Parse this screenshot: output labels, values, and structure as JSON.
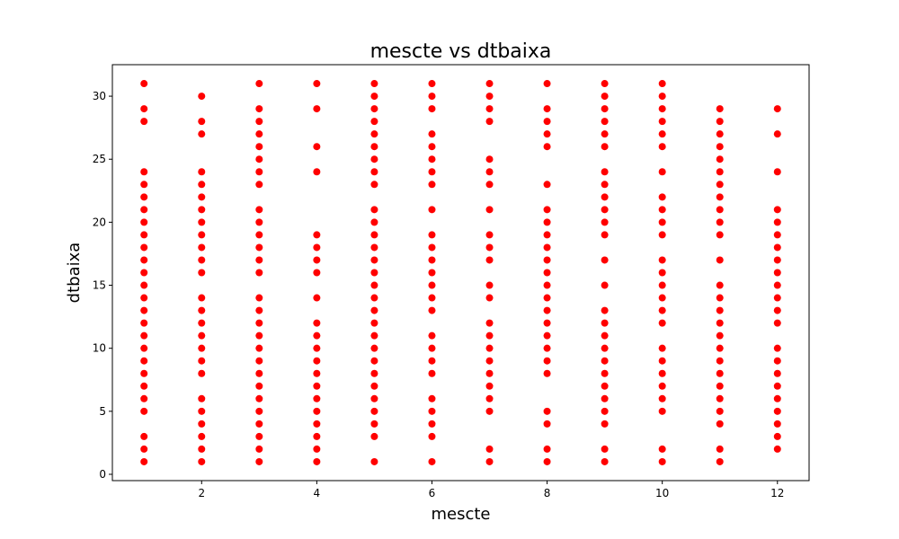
{
  "chart_data": {
    "type": "scatter",
    "title": "mescte vs dtbaixa",
    "xlabel": "mescte",
    "ylabel": "dtbaixa",
    "xlim": [
      0.45,
      12.55
    ],
    "ylim": [
      -0.5,
      32.5
    ],
    "xticks": [
      2,
      4,
      6,
      8,
      10,
      12
    ],
    "yticks": [
      0,
      5,
      10,
      15,
      20,
      25,
      30
    ],
    "grid": false,
    "marker_color": "#ff0000",
    "points_by_x": [
      {
        "x": 1,
        "y": [
          1,
          2,
          3,
          5,
          6,
          7,
          8,
          9,
          10,
          11,
          12,
          13,
          14,
          15,
          16,
          17,
          18,
          19,
          20,
          21,
          22,
          23,
          24,
          28,
          29,
          31
        ]
      },
      {
        "x": 2,
        "y": [
          1,
          2,
          3,
          4,
          5,
          6,
          8,
          9,
          10,
          11,
          12,
          13,
          14,
          16,
          17,
          18,
          19,
          20,
          21,
          22,
          23,
          24,
          27,
          28,
          30
        ]
      },
      {
        "x": 3,
        "y": [
          1,
          2,
          3,
          4,
          5,
          6,
          7,
          8,
          9,
          10,
          11,
          12,
          13,
          14,
          16,
          17,
          18,
          19,
          20,
          21,
          23,
          24,
          25,
          26,
          27,
          28,
          29,
          31
        ]
      },
      {
        "x": 4,
        "y": [
          1,
          2,
          3,
          4,
          5,
          6,
          7,
          8,
          9,
          10,
          11,
          12,
          14,
          16,
          17,
          18,
          19,
          24,
          26,
          29,
          31
        ]
      },
      {
        "x": 5,
        "y": [
          1,
          3,
          4,
          5,
          6,
          7,
          8,
          9,
          10,
          11,
          12,
          13,
          14,
          15,
          16,
          17,
          18,
          19,
          20,
          21,
          23,
          24,
          25,
          26,
          27,
          28,
          29,
          30,
          31
        ]
      },
      {
        "x": 6,
        "y": [
          1,
          3,
          4,
          5,
          6,
          8,
          9,
          10,
          11,
          13,
          14,
          15,
          16,
          17,
          18,
          19,
          21,
          23,
          24,
          25,
          26,
          27,
          29,
          30,
          31
        ]
      },
      {
        "x": 7,
        "y": [
          1,
          2,
          5,
          6,
          7,
          8,
          9,
          10,
          11,
          12,
          14,
          15,
          17,
          18,
          19,
          21,
          23,
          24,
          25,
          28,
          29,
          30,
          31
        ]
      },
      {
        "x": 8,
        "y": [
          1,
          2,
          4,
          5,
          8,
          9,
          10,
          11,
          12,
          13,
          14,
          15,
          16,
          17,
          18,
          19,
          20,
          21,
          23,
          26,
          27,
          28,
          29,
          31
        ]
      },
      {
        "x": 9,
        "y": [
          1,
          2,
          4,
          5,
          6,
          7,
          8,
          9,
          10,
          11,
          12,
          13,
          15,
          17,
          19,
          20,
          21,
          22,
          23,
          24,
          26,
          27,
          28,
          29,
          30,
          31
        ]
      },
      {
        "x": 10,
        "y": [
          1,
          2,
          5,
          6,
          7,
          8,
          9,
          10,
          12,
          13,
          14,
          15,
          16,
          17,
          19,
          20,
          21,
          22,
          24,
          26,
          27,
          28,
          29,
          30,
          31
        ]
      },
      {
        "x": 11,
        "y": [
          1,
          2,
          4,
          5,
          6,
          7,
          8,
          9,
          10,
          11,
          12,
          13,
          14,
          15,
          17,
          19,
          20,
          21,
          22,
          23,
          24,
          25,
          26,
          27,
          28,
          29
        ]
      },
      {
        "x": 12,
        "y": [
          2,
          3,
          4,
          5,
          6,
          7,
          8,
          9,
          10,
          12,
          13,
          14,
          15,
          16,
          17,
          18,
          19,
          20,
          21,
          24,
          27,
          29
        ]
      }
    ]
  }
}
